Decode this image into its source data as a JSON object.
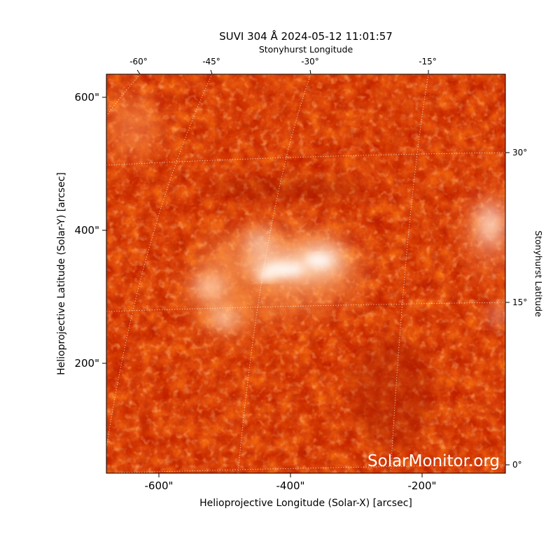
{
  "title": "SUVI 304 Å 2024-05-12 11:01:57",
  "watermark": "SolarMonitor.org",
  "axes": {
    "bottom": {
      "label": "Helioprojective Longitude (Solar-X) [arcsec]",
      "ticks": [
        "-600\"",
        "-400\"",
        "-200\""
      ]
    },
    "left": {
      "label": "Helioprojective Latitude (Solar-Y) [arcsec]",
      "ticks": [
        "600\"",
        "400\"",
        "200\""
      ]
    },
    "top": {
      "label": "Stonyhurst Longitude",
      "ticks": [
        "-60°",
        "-45°",
        "-30°",
        "-15°"
      ]
    },
    "right": {
      "label": "Stonyhurst Latitude",
      "ticks": [
        "30°",
        "15°",
        "0°"
      ]
    }
  },
  "colors": {
    "colormap_dark": "#b51a00",
    "colormap_mid": "#ff6600",
    "colormap_bright": "#fff4e8",
    "grid": "#ffffff",
    "watermark": "#ffffff"
  }
}
